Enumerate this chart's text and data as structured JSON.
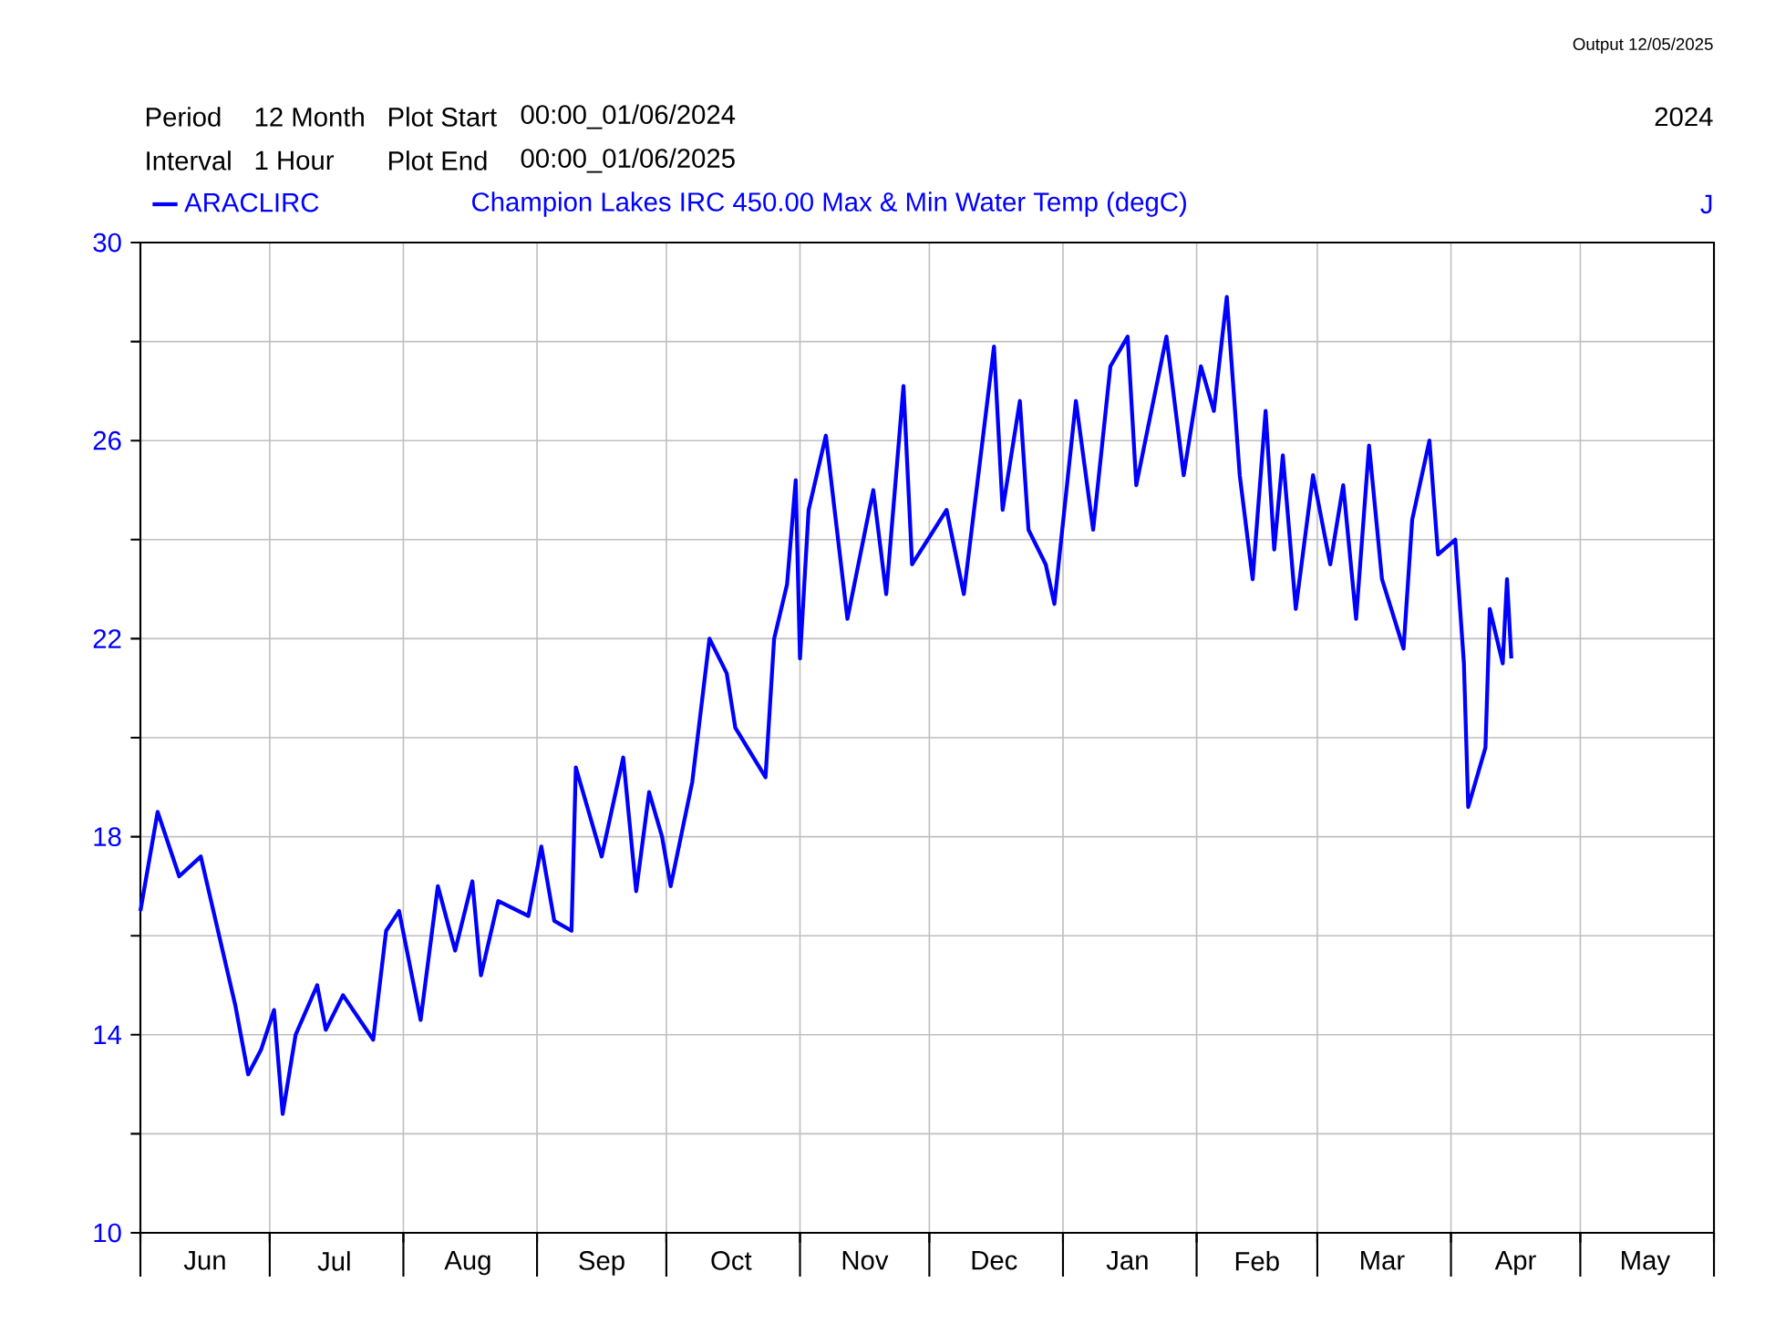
{
  "chart_data": {
    "type": "line",
    "subtitle": "Champion Lakes IRC   450.00   Max & Min   Water Temp (degC)",
    "annotations": [
      "Period",
      "12 Month",
      "Plot Start",
      "00:00_01/06/2024",
      "Interval",
      "1 Hour",
      "Plot End",
      "00:00_01/06/2025",
      "2024",
      "J",
      "Output 12/05/2025"
    ],
    "x": [
      "2024-06-01",
      "2024-06-05",
      "2024-06-10",
      "2024-06-15",
      "2024-06-23",
      "2024-06-26",
      "2024-06-29",
      "2024-07-02",
      "2024-07-04",
      "2024-07-07",
      "2024-07-12",
      "2024-07-14",
      "2024-07-18",
      "2024-07-25",
      "2024-07-28",
      "2024-07-31",
      "2024-08-05",
      "2024-08-09",
      "2024-08-13",
      "2024-08-17",
      "2024-08-19",
      "2024-08-23",
      "2024-08-30",
      "2024-09-02",
      "2024-09-05",
      "2024-09-09",
      "2024-09-10",
      "2024-09-16",
      "2024-09-21",
      "2024-09-24",
      "2024-09-27",
      "2024-09-30",
      "2024-10-02",
      "2024-10-07",
      "2024-10-11",
      "2024-10-15",
      "2024-10-17",
      "2024-10-24",
      "2024-10-26",
      "2024-10-29",
      "2024-10-31",
      "2024-11-01",
      "2024-11-03",
      "2024-11-07",
      "2024-11-12",
      "2024-11-18",
      "2024-11-21",
      "2024-11-25",
      "2024-11-27",
      "2024-12-05",
      "2024-12-09",
      "2024-12-16",
      "2024-12-18",
      "2024-12-22",
      "2024-12-24",
      "2024-12-28",
      "2024-12-30",
      "2025-01-04",
      "2025-01-08",
      "2025-01-12",
      "2025-01-16",
      "2025-01-18",
      "2025-01-25",
      "2025-01-29",
      "2025-02-02",
      "2025-02-05",
      "2025-02-08",
      "2025-02-11",
      "2025-02-14",
      "2025-02-17",
      "2025-02-19",
      "2025-02-21",
      "2025-02-24",
      "2025-02-28",
      "2025-03-04",
      "2025-03-07",
      "2025-03-10",
      "2025-03-13",
      "2025-03-16",
      "2025-03-21",
      "2025-03-23",
      "2025-03-27",
      "2025-03-29",
      "2025-04-02",
      "2025-04-04",
      "2025-04-05",
      "2025-04-09",
      "2025-04-10",
      "2025-04-13",
      "2025-04-14",
      "2025-04-15"
    ],
    "series": [
      {
        "name": "ARACLIRC",
        "color": "#0000ff",
        "values": [
          16.5,
          18.5,
          17.2,
          17.6,
          14.6,
          13.2,
          13.7,
          14.5,
          12.4,
          14.0,
          15.0,
          14.1,
          14.8,
          13.9,
          16.1,
          16.5,
          14.3,
          17.0,
          15.7,
          17.1,
          15.2,
          16.7,
          16.4,
          17.8,
          16.3,
          16.1,
          19.4,
          17.6,
          19.6,
          16.9,
          18.9,
          18.0,
          17.0,
          19.1,
          22.0,
          21.3,
          20.2,
          19.2,
          22.0,
          23.1,
          25.2,
          21.6,
          24.6,
          26.1,
          22.4,
          25.0,
          22.9,
          27.1,
          23.5,
          24.6,
          22.9,
          27.9,
          24.6,
          26.8,
          24.2,
          23.5,
          22.7,
          26.8,
          24.2,
          27.5,
          28.1,
          25.1,
          28.1,
          25.3,
          27.5,
          26.6,
          28.9,
          25.3,
          23.2,
          26.6,
          23.8,
          25.7,
          22.6,
          25.3,
          23.5,
          25.1,
          22.4,
          25.9,
          23.2,
          21.8,
          24.4,
          26.0,
          23.7,
          24.0,
          21.5,
          18.6,
          19.8,
          22.6,
          21.5,
          23.2,
          21.6
        ]
      }
    ],
    "xlim": [
      "2024-06-01",
      "2025-06-01"
    ],
    "xticks": [
      {
        "value": "2024-06-01",
        "label": null
      },
      {
        "value": "2024-06-16",
        "label": "Jun"
      },
      {
        "value": "2024-07-01",
        "label": null
      },
      {
        "value": "2024-07-16",
        "label": "Jul"
      },
      {
        "value": "2024-08-01",
        "label": null
      },
      {
        "value": "2024-08-16",
        "label": "Aug"
      },
      {
        "value": "2024-09-01",
        "label": null
      },
      {
        "value": "2024-09-16",
        "label": "Sep"
      },
      {
        "value": "2024-10-01",
        "label": null
      },
      {
        "value": "2024-10-16",
        "label": "Oct"
      },
      {
        "value": "2024-11-01",
        "label": null
      },
      {
        "value": "2024-11-16",
        "label": "Nov"
      },
      {
        "value": "2024-12-01",
        "label": null
      },
      {
        "value": "2024-12-16",
        "label": "Dec"
      },
      {
        "value": "2025-01-01",
        "label": null
      },
      {
        "value": "2025-01-16",
        "label": "Jan"
      },
      {
        "value": "2025-02-01",
        "label": null
      },
      {
        "value": "2025-02-15",
        "label": "Feb"
      },
      {
        "value": "2025-03-01",
        "label": null
      },
      {
        "value": "2025-03-16",
        "label": "Mar"
      },
      {
        "value": "2025-04-01",
        "label": null
      },
      {
        "value": "2025-04-16",
        "label": "Apr"
      },
      {
        "value": "2025-05-01",
        "label": null
      },
      {
        "value": "2025-05-16",
        "label": "May"
      },
      {
        "value": "2025-06-01",
        "label": null
      }
    ],
    "ylim": [
      10,
      30
    ],
    "yticks": [
      10,
      {
        "value": 12,
        "label": null
      },
      14,
      {
        "value": 16,
        "label": null
      },
      18,
      {
        "value": 20,
        "label": null
      },
      22,
      {
        "value": 24,
        "label": null
      },
      26,
      {
        "value": 28,
        "label": null
      },
      30
    ],
    "grid": true,
    "legend": "top left",
    "marker": "none",
    "line_style": "solid"
  }
}
